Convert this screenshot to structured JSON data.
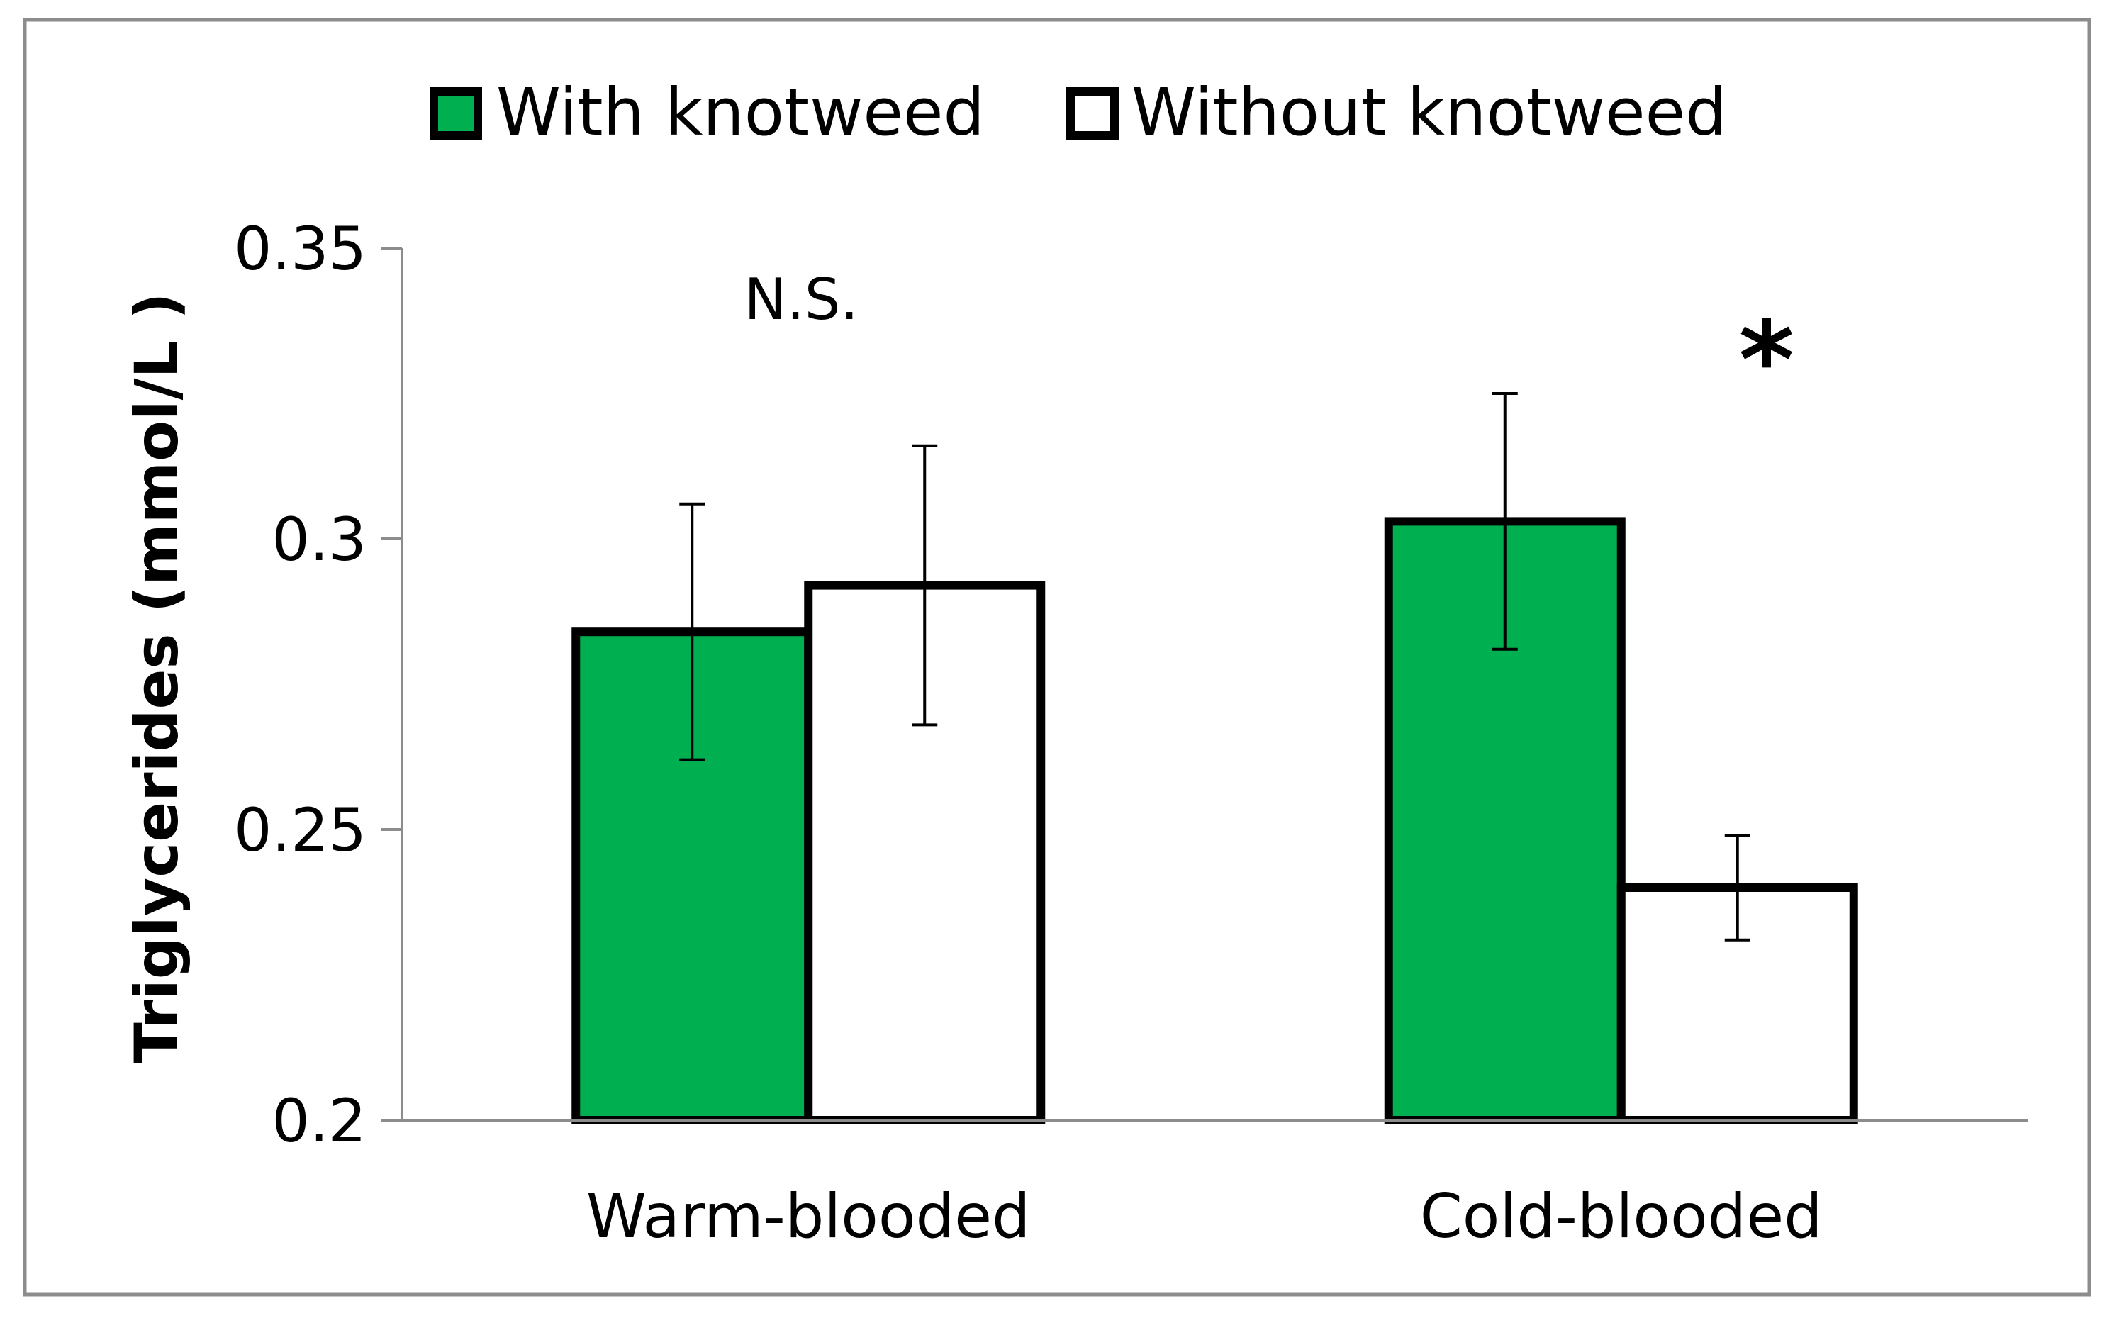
{
  "chart_data": {
    "type": "bar",
    "title": "",
    "xlabel": "",
    "ylabel": "Triglycerides (mmol/L )",
    "ylim": [
      0.2,
      0.35
    ],
    "yticks": [
      0.2,
      0.25,
      0.3,
      0.35
    ],
    "ytick_labels": [
      "0.2",
      "0.25",
      "0.3",
      "0.35"
    ],
    "grid": false,
    "legend_position": "top",
    "categories": [
      "Warm-blooded",
      "Cold-blooded"
    ],
    "series": [
      {
        "name": "With knotweed",
        "color": "#00b050",
        "values": [
          0.284,
          0.303
        ],
        "errors": [
          0.022,
          0.022
        ]
      },
      {
        "name": "Without knotweed",
        "color": "#ffffff",
        "values": [
          0.292,
          0.24
        ],
        "errors": [
          0.024,
          0.009
        ]
      }
    ],
    "annotations": [
      {
        "category_index": 0,
        "text": "N.S."
      },
      {
        "category_index": 1,
        "text": "*"
      }
    ]
  }
}
